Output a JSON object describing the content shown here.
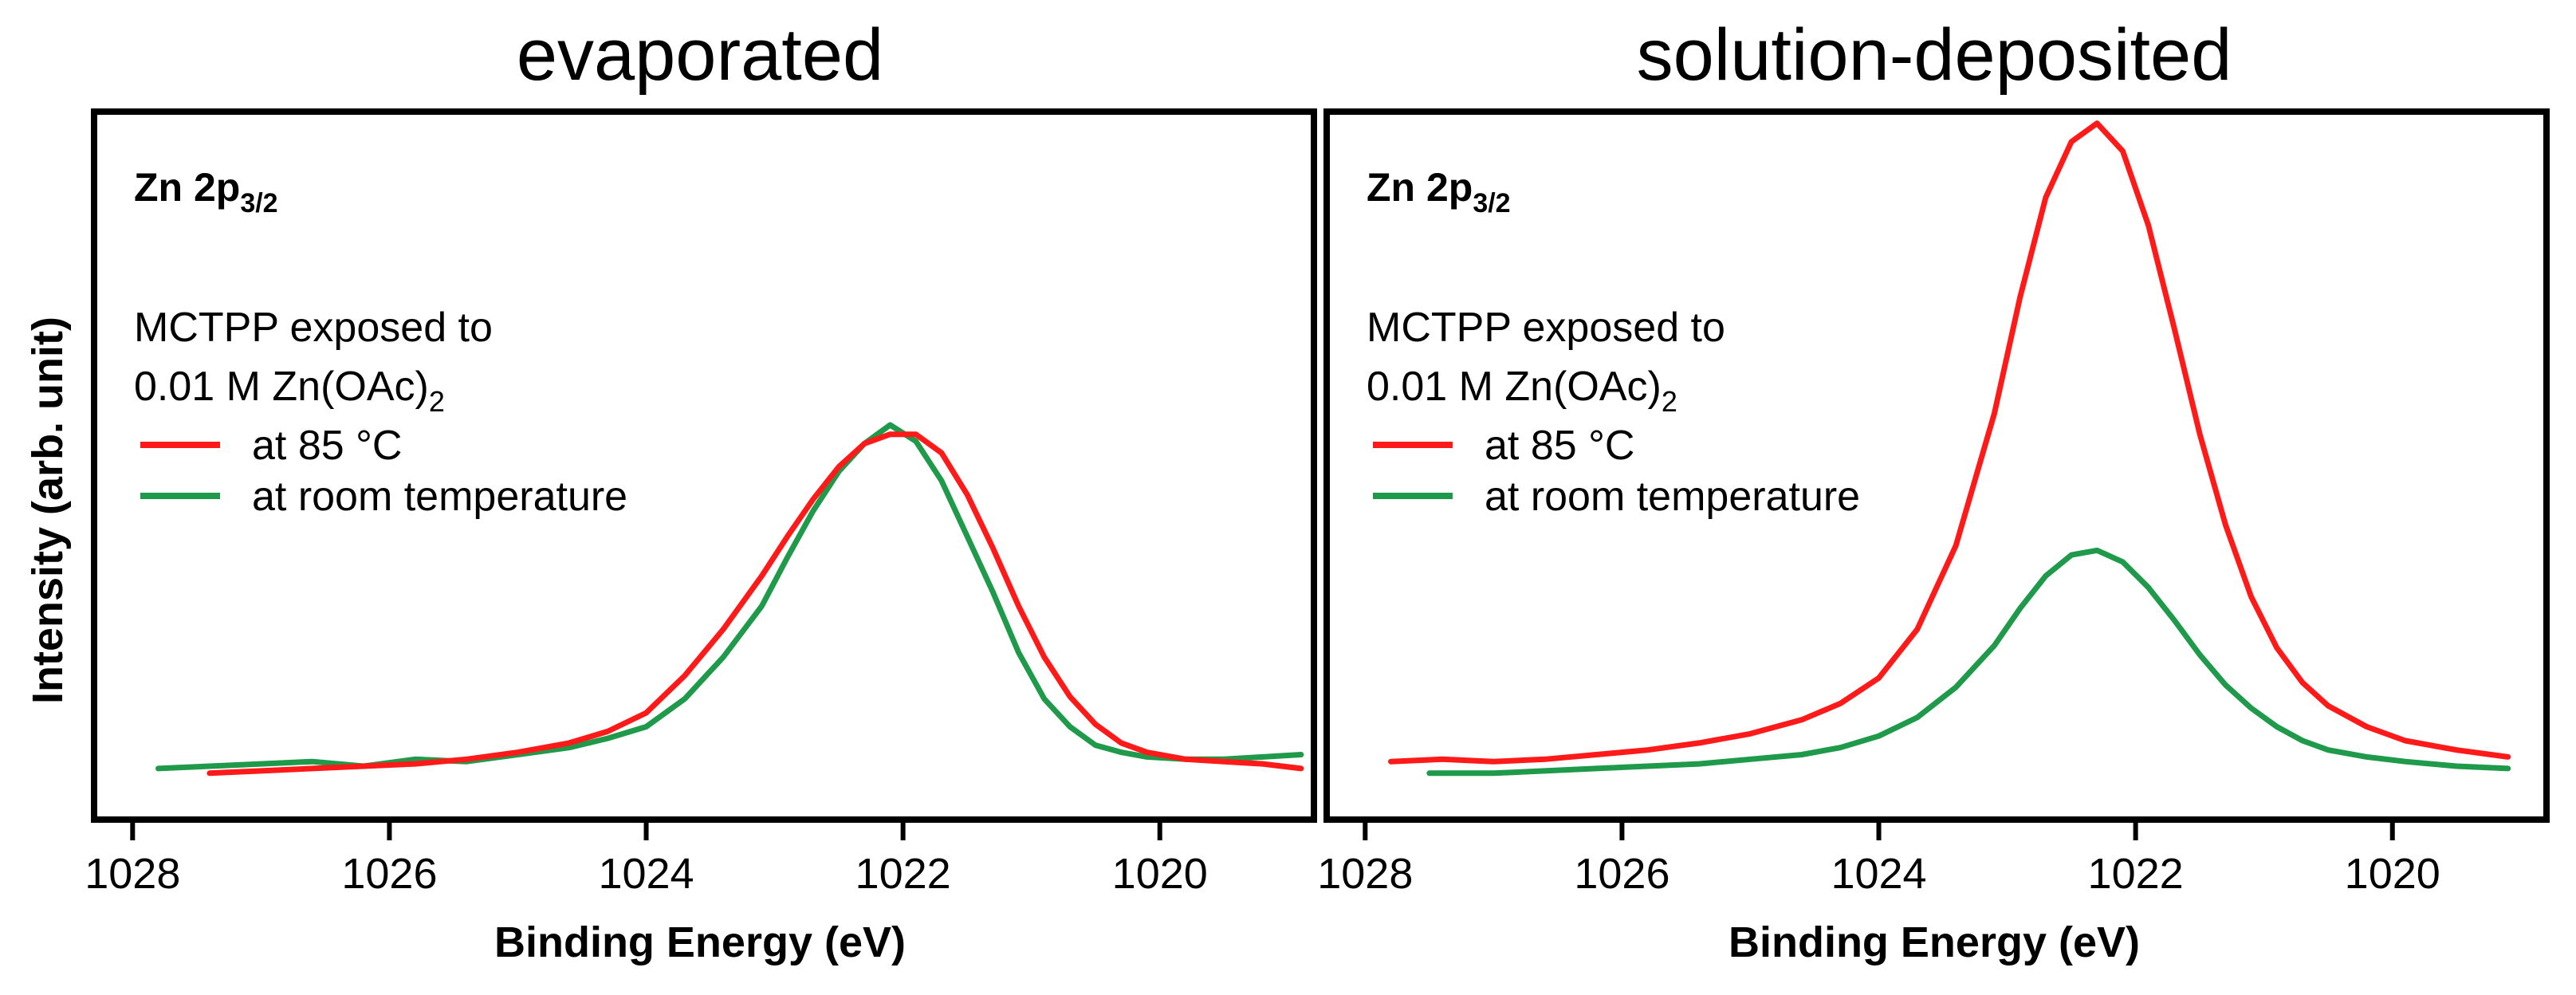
{
  "y_axis_label": "Intensity (arb. unit)",
  "legend_heading_line1": "MCTPP exposed to",
  "legend_heading_line2_prefix": "0.01 M Zn(OAc)",
  "legend_heading_line2_sub": "2",
  "peak_label_main": "Zn 2p",
  "peak_label_sub": "3/2",
  "colors": {
    "at_85C": "#ff1a1a",
    "room_temp": "#1f9a4a",
    "frame": "#000000"
  },
  "chart_data": [
    {
      "type": "line",
      "title": "evaporated",
      "xlabel": "Binding Energy (eV)",
      "ylabel": "Intensity (arb. unit)",
      "xlim": [
        1028.3,
        1018.8
      ],
      "ylim": [
        -0.2,
        2.85
      ],
      "xticks": [
        1028,
        1026,
        1024,
        1022,
        1020
      ],
      "xtick_labels": [
        "1028",
        "1026",
        "1024",
        "1022",
        "1020"
      ],
      "series": [
        {
          "name": "at 85 °C",
          "color": "#ff1a1a",
          "x": [
            1027.4,
            1027.0,
            1026.6,
            1026.2,
            1025.8,
            1025.4,
            1025.0,
            1024.6,
            1024.3,
            1024.0,
            1023.7,
            1023.4,
            1023.1,
            1022.9,
            1022.7,
            1022.5,
            1022.3,
            1022.1,
            1021.9,
            1021.7,
            1021.5,
            1021.3,
            1021.1,
            1020.9,
            1020.7,
            1020.5,
            1020.3,
            1020.1,
            1019.8,
            1019.5,
            1019.2,
            1018.9
          ],
          "values": [
            0.0,
            0.01,
            0.02,
            0.03,
            0.04,
            0.06,
            0.09,
            0.13,
            0.18,
            0.26,
            0.42,
            0.62,
            0.85,
            1.02,
            1.18,
            1.32,
            1.42,
            1.46,
            1.46,
            1.38,
            1.2,
            0.97,
            0.72,
            0.5,
            0.33,
            0.21,
            0.13,
            0.09,
            0.06,
            0.05,
            0.04,
            0.02
          ]
        },
        {
          "name": "at room temperature",
          "color": "#1f9a4a",
          "x": [
            1027.8,
            1027.4,
            1027.0,
            1026.6,
            1026.2,
            1025.8,
            1025.4,
            1025.0,
            1024.6,
            1024.3,
            1024.0,
            1023.7,
            1023.4,
            1023.1,
            1022.9,
            1022.7,
            1022.5,
            1022.3,
            1022.1,
            1021.9,
            1021.7,
            1021.5,
            1021.3,
            1021.1,
            1020.9,
            1020.7,
            1020.5,
            1020.3,
            1020.1,
            1019.8,
            1019.5,
            1019.2,
            1018.9
          ],
          "values": [
            0.02,
            0.03,
            0.04,
            0.05,
            0.03,
            0.06,
            0.05,
            0.08,
            0.11,
            0.15,
            0.2,
            0.32,
            0.5,
            0.72,
            0.93,
            1.13,
            1.3,
            1.42,
            1.5,
            1.43,
            1.26,
            1.02,
            0.78,
            0.52,
            0.32,
            0.2,
            0.12,
            0.09,
            0.07,
            0.06,
            0.06,
            0.07,
            0.08
          ]
        }
      ],
      "legend": [
        "at 85 °C",
        "at room temperature"
      ]
    },
    {
      "type": "line",
      "title": "solution-deposited",
      "xlabel": "Binding Energy (eV)",
      "ylabel": "Intensity (arb. unit)",
      "xlim": [
        1028.3,
        1018.8
      ],
      "ylim": [
        -0.2,
        2.85
      ],
      "xticks": [
        1028,
        1026,
        1024,
        1022,
        1020
      ],
      "xtick_labels": [
        "1028",
        "1026",
        "1024",
        "1022",
        "1020"
      ],
      "series": [
        {
          "name": "at 85 °C",
          "color": "#ff1a1a",
          "x": [
            1027.8,
            1027.4,
            1027.0,
            1026.6,
            1026.2,
            1025.8,
            1025.4,
            1025.0,
            1024.6,
            1024.3,
            1024.0,
            1023.7,
            1023.4,
            1023.1,
            1022.9,
            1022.7,
            1022.5,
            1022.3,
            1022.1,
            1021.9,
            1021.7,
            1021.5,
            1021.3,
            1021.1,
            1020.9,
            1020.7,
            1020.5,
            1020.2,
            1019.9,
            1019.5,
            1019.1
          ],
          "values": [
            0.05,
            0.06,
            0.05,
            0.06,
            0.08,
            0.1,
            0.13,
            0.17,
            0.23,
            0.3,
            0.41,
            0.62,
            0.98,
            1.55,
            2.05,
            2.48,
            2.72,
            2.8,
            2.68,
            2.36,
            1.92,
            1.46,
            1.07,
            0.76,
            0.54,
            0.39,
            0.29,
            0.2,
            0.14,
            0.1,
            0.07
          ]
        },
        {
          "name": "at room temperature",
          "color": "#1f9a4a",
          "x": [
            1027.5,
            1027.0,
            1026.6,
            1026.2,
            1025.8,
            1025.4,
            1025.0,
            1024.6,
            1024.3,
            1024.0,
            1023.7,
            1023.4,
            1023.1,
            1022.9,
            1022.7,
            1022.5,
            1022.3,
            1022.1,
            1021.9,
            1021.7,
            1021.5,
            1021.3,
            1021.1,
            1020.9,
            1020.7,
            1020.5,
            1020.2,
            1019.9,
            1019.5,
            1019.1
          ],
          "values": [
            0.0,
            0.0,
            0.01,
            0.02,
            0.03,
            0.04,
            0.06,
            0.08,
            0.11,
            0.16,
            0.24,
            0.37,
            0.55,
            0.71,
            0.85,
            0.94,
            0.96,
            0.91,
            0.8,
            0.66,
            0.51,
            0.38,
            0.28,
            0.2,
            0.14,
            0.1,
            0.07,
            0.05,
            0.03,
            0.02
          ]
        }
      ],
      "legend": [
        "at 85 °C",
        "at room temperature"
      ]
    }
  ]
}
